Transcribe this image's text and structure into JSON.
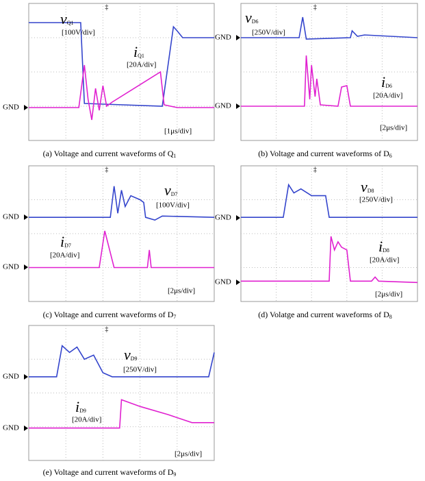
{
  "panels": [
    {
      "voltage": {
        "symbol": "v",
        "subscript": "Q1",
        "scale": "[100V/div]"
      },
      "current": {
        "symbol": "i",
        "subscript": "Q1",
        "scale": "[20A/div]"
      },
      "time_scale": "[1μs/div]",
      "gnd_labels": [
        "GND"
      ],
      "caption": {
        "text": "(a) Voltage and current waveforms of Q",
        "subscript": "1"
      }
    },
    {
      "voltage": {
        "symbol": "v",
        "subscript": "D6",
        "scale": "[250V/div]"
      },
      "current": {
        "symbol": "i",
        "subscript": "D6",
        "scale": "[20A/div]"
      },
      "time_scale": "[2μs/div]",
      "gnd_labels": [
        "GND",
        "GND"
      ],
      "caption": {
        "text": "(b) Voltage and current waveforms of D",
        "subscript": "6"
      }
    },
    {
      "voltage": {
        "symbol": "v",
        "subscript": "D7",
        "scale": "[100V/div]"
      },
      "current": {
        "symbol": "i",
        "subscript": "D7",
        "scale": "[20A/div]"
      },
      "time_scale": "[2μs/div]",
      "gnd_labels": [
        "GND",
        "GND"
      ],
      "caption": {
        "text": "(c) Voltage and current waveforms of D",
        "subscript": "7"
      }
    },
    {
      "voltage": {
        "symbol": "v",
        "subscript": "D8",
        "scale": "[250V/div]"
      },
      "current": {
        "symbol": "i",
        "subscript": "D8",
        "scale": "[20A/div]"
      },
      "time_scale": "[2μs/div]",
      "gnd_labels": [
        "GND",
        "GND"
      ],
      "caption": {
        "text": "(d) Volatge and current waveforms of D",
        "subscript": "8"
      }
    },
    {
      "voltage": {
        "symbol": "v",
        "subscript": "D9",
        "scale": "[250V/div]"
      },
      "current": {
        "symbol": "i",
        "subscript": "D9",
        "scale": "[20A/div]"
      },
      "time_scale": "[2μs/div]",
      "gnd_labels": [
        "GND",
        "GND"
      ],
      "caption": {
        "text": "(e) Voltage and current waveforms of D",
        "subscript": "9"
      }
    }
  ]
}
